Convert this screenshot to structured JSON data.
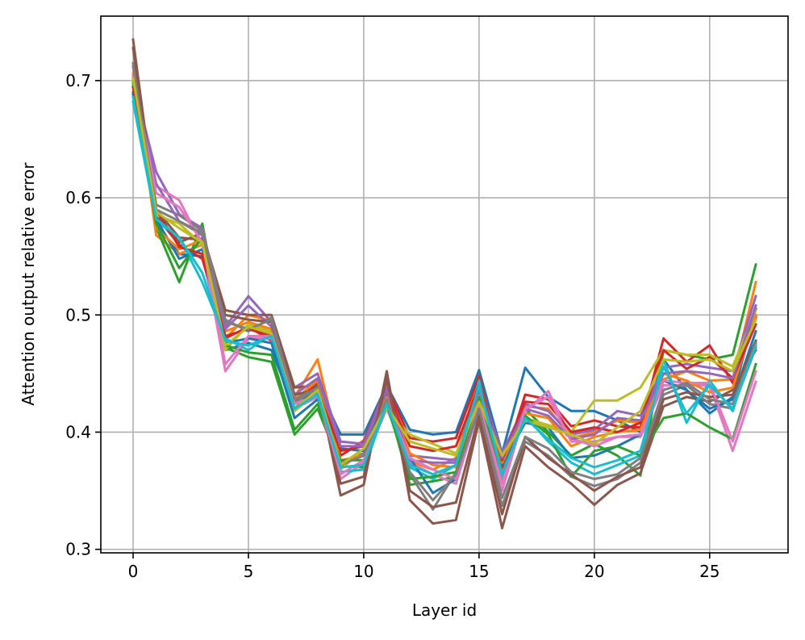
{
  "chart_data": {
    "type": "line",
    "title": "",
    "xlabel": "Layer id",
    "ylabel": "Attention output relative error",
    "xlim": [
      -1.4,
      28.4
    ],
    "ylim": [
      0.297,
      0.755
    ],
    "xticks": [
      0,
      5,
      10,
      15,
      20,
      25
    ],
    "yticks": [
      0.3,
      0.4,
      0.5,
      0.6,
      0.7
    ],
    "ytick_labels": [
      "0.3",
      "0.4",
      "0.5",
      "0.6",
      "0.7"
    ],
    "grid": true,
    "x": [
      0,
      1,
      2,
      3,
      4,
      5,
      6,
      7,
      8,
      9,
      10,
      11,
      12,
      13,
      14,
      15,
      16,
      17,
      18,
      19,
      20,
      21,
      22,
      23,
      24,
      25,
      26,
      27
    ],
    "series": [
      {
        "color": "#1f77b4",
        "values": [
          0.688,
          0.578,
          0.552,
          0.55,
          0.47,
          0.476,
          0.47,
          0.42,
          0.44,
          0.398,
          0.398,
          0.44,
          0.402,
          0.398,
          0.4,
          0.453,
          0.382,
          0.455,
          0.43,
          0.418,
          0.418,
          0.41,
          0.4,
          0.462,
          0.436,
          0.416,
          0.43,
          0.505
        ]
      },
      {
        "color": "#ff7f0e",
        "values": [
          0.712,
          0.568,
          0.552,
          0.56,
          0.48,
          0.5,
          0.495,
          0.43,
          0.462,
          0.38,
          0.393,
          0.42,
          0.375,
          0.368,
          0.378,
          0.448,
          0.368,
          0.422,
          0.42,
          0.395,
          0.4,
          0.41,
          0.408,
          0.445,
          0.452,
          0.444,
          0.445,
          0.528
        ]
      },
      {
        "color": "#2ca02c",
        "values": [
          0.702,
          0.575,
          0.528,
          0.578,
          0.472,
          0.464,
          0.46,
          0.398,
          0.42,
          0.371,
          0.37,
          0.428,
          0.355,
          0.358,
          0.362,
          0.43,
          0.36,
          0.42,
          0.4,
          0.38,
          0.39,
          0.38,
          0.363,
          0.47,
          0.466,
          0.462,
          0.466,
          0.543
        ]
      },
      {
        "color": "#d62728",
        "values": [
          0.695,
          0.584,
          0.56,
          0.548,
          0.48,
          0.49,
          0.478,
          0.425,
          0.442,
          0.38,
          0.392,
          0.44,
          0.395,
          0.392,
          0.395,
          0.448,
          0.37,
          0.432,
          0.428,
          0.405,
          0.41,
          0.405,
          0.404,
          0.48,
          0.46,
          0.474,
          0.442,
          0.498
        ]
      },
      {
        "color": "#9467bd",
        "values": [
          0.7,
          0.622,
          0.586,
          0.574,
          0.49,
          0.516,
          0.494,
          0.438,
          0.45,
          0.392,
          0.39,
          0.44,
          0.38,
          0.378,
          0.376,
          0.44,
          0.382,
          0.424,
          0.418,
          0.398,
          0.402,
          0.418,
          0.414,
          0.455,
          0.458,
          0.455,
          0.452,
          0.516
        ]
      },
      {
        "color": "#8c564b",
        "values": [
          0.735,
          0.586,
          0.562,
          0.57,
          0.504,
          0.5,
          0.5,
          0.438,
          0.44,
          0.346,
          0.355,
          0.452,
          0.342,
          0.322,
          0.325,
          0.41,
          0.318,
          0.388,
          0.37,
          0.356,
          0.338,
          0.355,
          0.365,
          0.422,
          0.43,
          0.426,
          0.436,
          0.47
        ]
      },
      {
        "color": "#e377c2",
        "values": [
          0.7,
          0.61,
          0.598,
          0.56,
          0.452,
          0.48,
          0.48,
          0.42,
          0.43,
          0.36,
          0.374,
          0.42,
          0.374,
          0.364,
          0.356,
          0.42,
          0.35,
          0.418,
          0.435,
          0.395,
          0.388,
          0.396,
          0.396,
          0.44,
          0.44,
          0.44,
          0.384,
          0.443
        ]
      },
      {
        "color": "#7f7f7f",
        "values": [
          0.715,
          0.594,
          0.585,
          0.572,
          0.496,
          0.486,
          0.498,
          0.425,
          0.438,
          0.374,
          0.382,
          0.43,
          0.364,
          0.334,
          0.366,
          0.418,
          0.337,
          0.392,
          0.38,
          0.362,
          0.354,
          0.36,
          0.374,
          0.432,
          0.44,
          0.424,
          0.42,
          0.472
        ]
      },
      {
        "color": "#bcbd22",
        "values": [
          0.7,
          0.585,
          0.578,
          0.56,
          0.47,
          0.492,
          0.486,
          0.418,
          0.434,
          0.368,
          0.386,
          0.42,
          0.398,
          0.39,
          0.382,
          0.424,
          0.38,
          0.412,
          0.406,
          0.4,
          0.427,
          0.427,
          0.438,
          0.47,
          0.466,
          0.466,
          0.456,
          0.504
        ]
      },
      {
        "color": "#17becf",
        "values": [
          0.682,
          0.58,
          0.566,
          0.528,
          0.48,
          0.47,
          0.484,
          0.42,
          0.434,
          0.366,
          0.368,
          0.424,
          0.37,
          0.36,
          0.372,
          0.444,
          0.362,
          0.414,
          0.392,
          0.374,
          0.364,
          0.372,
          0.38,
          0.462,
          0.408,
          0.444,
          0.418,
          0.478
        ]
      },
      {
        "color": "#1f77b4",
        "values": [
          0.69,
          0.582,
          0.548,
          0.556,
          0.476,
          0.48,
          0.476,
          0.412,
          0.428,
          0.386,
          0.384,
          0.434,
          0.378,
          0.348,
          0.36,
          0.426,
          0.372,
          0.408,
          0.404,
          0.378,
          0.38,
          0.388,
          0.398,
          0.444,
          0.436,
          0.42,
          0.428,
          0.486
        ]
      },
      {
        "color": "#ff7f0e",
        "values": [
          0.706,
          0.574,
          0.556,
          0.564,
          0.486,
          0.494,
          0.488,
          0.428,
          0.444,
          0.376,
          0.38,
          0.43,
          0.382,
          0.372,
          0.37,
          0.436,
          0.374,
          0.416,
          0.412,
          0.388,
          0.396,
          0.4,
          0.402,
          0.45,
          0.444,
          0.434,
          0.438,
          0.5
        ]
      },
      {
        "color": "#2ca02c",
        "values": [
          0.698,
          0.578,
          0.54,
          0.566,
          0.474,
          0.468,
          0.466,
          0.402,
          0.424,
          0.376,
          0.376,
          0.424,
          0.36,
          0.362,
          0.366,
          0.426,
          0.364,
          0.414,
          0.398,
          0.362,
          0.384,
          0.388,
          0.38,
          0.412,
          0.416,
          0.404,
          0.394,
          0.458
        ]
      },
      {
        "color": "#d62728",
        "values": [
          0.694,
          0.59,
          0.558,
          0.552,
          0.482,
          0.488,
          0.482,
          0.42,
          0.436,
          0.384,
          0.388,
          0.436,
          0.388,
          0.384,
          0.388,
          0.44,
          0.376,
          0.426,
          0.424,
          0.4,
          0.404,
          0.4,
          0.408,
          0.47,
          0.454,
          0.464,
          0.446,
          0.492
        ]
      },
      {
        "color": "#9467bd",
        "values": [
          0.702,
          0.612,
          0.58,
          0.568,
          0.488,
          0.508,
          0.49,
          0.432,
          0.446,
          0.388,
          0.388,
          0.436,
          0.376,
          0.374,
          0.374,
          0.436,
          0.378,
          0.42,
          0.414,
          0.394,
          0.398,
          0.412,
          0.41,
          0.45,
          0.452,
          0.45,
          0.446,
          0.508
        ]
      },
      {
        "color": "#8c564b",
        "values": [
          0.728,
          0.59,
          0.566,
          0.564,
          0.5,
          0.496,
          0.494,
          0.432,
          0.436,
          0.356,
          0.362,
          0.446,
          0.35,
          0.336,
          0.34,
          0.414,
          0.33,
          0.396,
          0.378,
          0.364,
          0.35,
          0.362,
          0.37,
          0.428,
          0.434,
          0.43,
          0.432,
          0.478
        ]
      },
      {
        "color": "#e377c2",
        "values": [
          0.704,
          0.604,
          0.592,
          0.562,
          0.458,
          0.482,
          0.482,
          0.424,
          0.432,
          0.364,
          0.376,
          0.424,
          0.378,
          0.368,
          0.36,
          0.424,
          0.356,
          0.42,
          0.43,
          0.392,
          0.392,
          0.396,
          0.398,
          0.444,
          0.442,
          0.442,
          0.392,
          0.452
        ]
      },
      {
        "color": "#7f7f7f",
        "values": [
          0.712,
          0.59,
          0.58,
          0.57,
          0.494,
          0.488,
          0.496,
          0.428,
          0.438,
          0.372,
          0.38,
          0.428,
          0.366,
          0.342,
          0.364,
          0.42,
          0.344,
          0.396,
          0.386,
          0.366,
          0.36,
          0.364,
          0.378,
          0.436,
          0.442,
          0.428,
          0.424,
          0.476
        ]
      },
      {
        "color": "#bcbd22",
        "values": [
          0.702,
          0.588,
          0.574,
          0.562,
          0.474,
          0.49,
          0.484,
          0.42,
          0.436,
          0.372,
          0.386,
          0.422,
          0.392,
          0.386,
          0.38,
          0.426,
          0.38,
          0.41,
          0.404,
          0.398,
          0.39,
          0.404,
          0.418,
          0.462,
          0.46,
          0.462,
          0.452,
          0.496
        ]
      },
      {
        "color": "#17becf",
        "values": [
          0.686,
          0.582,
          0.566,
          0.536,
          0.478,
          0.474,
          0.482,
          0.42,
          0.432,
          0.37,
          0.372,
          0.424,
          0.372,
          0.364,
          0.372,
          0.44,
          0.364,
          0.412,
          0.394,
          0.378,
          0.37,
          0.376,
          0.384,
          0.456,
          0.416,
          0.44,
          0.42,
          0.474
        ]
      }
    ]
  }
}
